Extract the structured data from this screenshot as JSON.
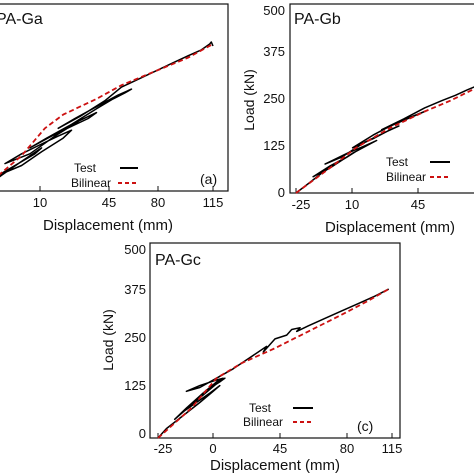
{
  "chart_data": [
    {
      "type": "line",
      "title": "PA-Ga",
      "panel_label": "(a)",
      "xlabel": "Displacement (mm)",
      "ylabel": "",
      "xticks": [
        "10",
        "45",
        "80",
        "115"
      ],
      "yticks": [],
      "xlim": [
        -25,
        115
      ],
      "ylim": [
        0,
        500
      ],
      "grid": false,
      "legend_position": "bottom-right",
      "series": [
        {
          "name": "Test",
          "color": "#000000",
          "dash": false,
          "x": [
            -25,
            -12,
            -2,
            5,
            12,
            8,
            0,
            -8,
            -14,
            0,
            12,
            25,
            30,
            22,
            12,
            0,
            -10,
            5,
            20,
            35,
            45,
            40,
            30,
            18,
            5,
            15,
            30,
            45,
            55,
            62,
            66,
            58,
            45,
            32,
            22,
            35,
            50,
            60,
            70,
            80,
            90,
            100,
            108,
            113,
            114,
            115
          ],
          "y": [
            0,
            40,
            70,
            90,
            110,
            95,
            75,
            55,
            40,
            65,
            100,
            135,
            155,
            140,
            120,
            95,
            70,
            95,
            140,
            180,
            200,
            185,
            165,
            140,
            110,
            135,
            170,
            210,
            235,
            250,
            260,
            245,
            215,
            185,
            160,
            190,
            230,
            265,
            285,
            305,
            325,
            345,
            360,
            375,
            380,
            370
          ]
        },
        {
          "name": "Bilinear",
          "color": "#cc1111",
          "dash": true,
          "x": [
            -25,
            0,
            14,
            25,
            45,
            60,
            80,
            100,
            115
          ],
          "y": [
            0,
            90,
            160,
            195,
            235,
            270,
            305,
            340,
            375
          ]
        }
      ]
    },
    {
      "type": "line",
      "title": "PA-Gb",
      "panel_label": "",
      "xlabel": "Displacement (mm)",
      "ylabel": "Load (kN)",
      "xticks": [
        "-25",
        "10",
        "45"
      ],
      "yticks": [
        "0",
        "125",
        "250",
        "375",
        "500"
      ],
      "xlim": [
        -25,
        80
      ],
      "ylim": [
        0,
        500
      ],
      "grid": false,
      "legend_position": "bottom-right",
      "series": [
        {
          "name": "Test",
          "color": "#000000",
          "dash": false,
          "x": [
            -25,
            -18,
            -10,
            -2,
            5,
            10,
            5,
            -5,
            -15,
            -5,
            8,
            18,
            22,
            15,
            5,
            -8,
            2,
            15,
            28,
            35,
            30,
            20,
            8,
            20,
            32,
            42,
            50,
            45,
            35,
            25,
            38,
            50,
            60,
            68,
            75,
            80
          ],
          "y": [
            0,
            25,
            55,
            80,
            100,
            115,
            100,
            75,
            45,
            70,
            110,
            135,
            145,
            130,
            110,
            80,
            100,
            140,
            170,
            185,
            175,
            150,
            125,
            160,
            190,
            210,
            225,
            215,
            195,
            175,
            205,
            235,
            255,
            270,
            285,
            295
          ]
        },
        {
          "name": "Bilinear",
          "color": "#cc1111",
          "dash": true,
          "x": [
            -25,
            -5,
            10,
            30,
            50,
            65,
            80
          ],
          "y": [
            0,
            70,
            125,
            180,
            225,
            255,
            290
          ]
        }
      ]
    },
    {
      "type": "line",
      "title": "PA-Gc",
      "panel_label": "(c)",
      "xlabel": "Displacement (mm)",
      "ylabel": "Load (kN)",
      "xticks": [
        "-25",
        "0",
        "10",
        "45",
        "80",
        "115"
      ],
      "yticks": [
        "0",
        "125",
        "250",
        "375",
        "500"
      ],
      "xlim": [
        -25,
        115
      ],
      "ylim": [
        0,
        500
      ],
      "grid": false,
      "legend_position": "bottom-right",
      "series": [
        {
          "name": "Test",
          "color": "#000000",
          "dash": false,
          "x": [
            -25,
            -20,
            -10,
            0,
            8,
            12,
            6,
            -2,
            -10,
            -4,
            5,
            12,
            15,
            10,
            2,
            -6,
            -15,
            -8,
            2,
            10,
            14,
            10,
            0,
            -8,
            0,
            10,
            20,
            30,
            40,
            38,
            45,
            52,
            55,
            60,
            58,
            65,
            75,
            85,
            95,
            105,
            113
          ],
          "y": [
            0,
            25,
            60,
            95,
            125,
            140,
            120,
            95,
            70,
            95,
            130,
            150,
            160,
            145,
            115,
            85,
            50,
            80,
            120,
            150,
            160,
            155,
            140,
            125,
            135,
            160,
            185,
            215,
            245,
            230,
            265,
            275,
            290,
            295,
            285,
            300,
            320,
            340,
            360,
            380,
            398
          ]
        },
        {
          "name": "Bilinear",
          "color": "#cc1111",
          "dash": true,
          "x": [
            -25,
            -5,
            10,
            25,
            45,
            65,
            85,
            100,
            113
          ],
          "y": [
            0,
            80,
            160,
            200,
            240,
            285,
            330,
            365,
            398
          ]
        }
      ]
    }
  ]
}
